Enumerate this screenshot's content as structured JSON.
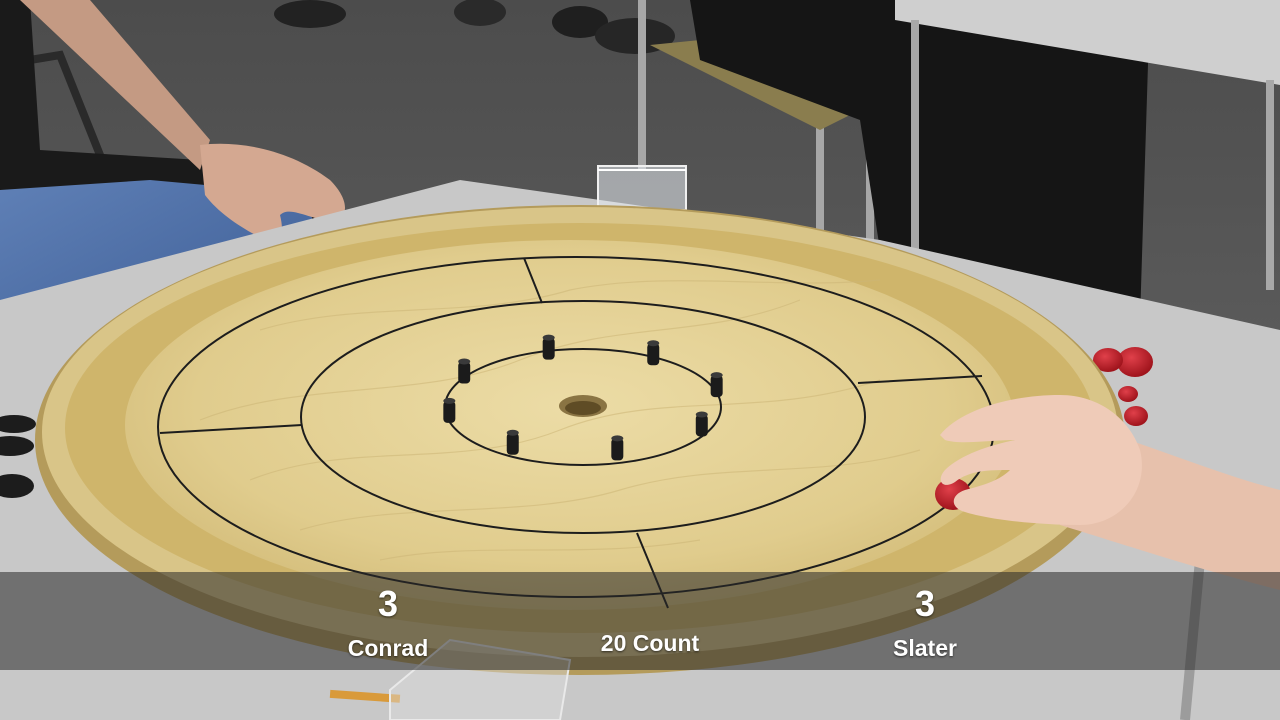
{
  "scoreboard": {
    "left_player": {
      "name": "Conrad",
      "score": "3"
    },
    "center_label": "20 Count",
    "right_player": {
      "name": "Slater",
      "score": "3"
    }
  },
  "board": {
    "peg_count": 8,
    "colors": {
      "floor": "#5e5e5e",
      "board_wood": "#e2cf93",
      "rim": "#c9b476",
      "gutter": "#cdb46a",
      "peg": "#1b1b1b",
      "red_disc": "#c01b25",
      "black_disc": "#1c1c1c"
    }
  }
}
